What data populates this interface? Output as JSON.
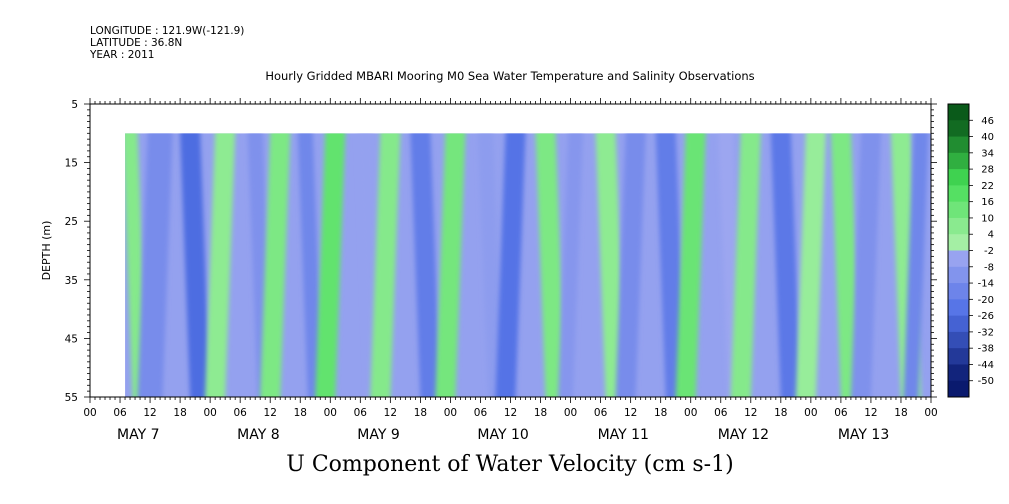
{
  "header": {
    "longitude": "LONGITUDE : 121.9W(-121.9)",
    "latitude": "LATITUDE : 36.8N",
    "year": "YEAR : 2011"
  },
  "chart_data": {
    "type": "heatmap",
    "title": "Hourly Gridded MBARI Mooring M0 Sea Water Temperature and Salinity Observations",
    "bottom_title": "U Component of Water Velocity (cm s-1)",
    "ylabel": "DEPTH (m)",
    "ylim": [
      55,
      5
    ],
    "y_ticks": [
      "5",
      "15",
      "25",
      "35",
      "45",
      "55"
    ],
    "x_hour_ticks": [
      "00",
      "06",
      "12",
      "18",
      "00",
      "06",
      "12",
      "18",
      "00",
      "06",
      "12",
      "18",
      "00",
      "06",
      "12",
      "18",
      "00",
      "06",
      "12",
      "18",
      "00",
      "06",
      "12",
      "18",
      "00",
      "06",
      "12",
      "18",
      "00"
    ],
    "x_day_labels": [
      "MAY  7",
      "MAY  8",
      "MAY  9",
      "MAY 10",
      "MAY 11",
      "MAY 12",
      "MAY 13"
    ],
    "data_start_hour": 7,
    "data_end_hour": 168,
    "data_top_depth": 10,
    "colorbar_levels": [
      "46",
      "40",
      "34",
      "28",
      "22",
      "16",
      "10",
      "4",
      "-2",
      "-8",
      "-14",
      "-20",
      "-26",
      "-32",
      "-38",
      "-44",
      "-50"
    ],
    "colors": {
      "positive_light": "#a8f0a8",
      "positive_mid": "#44dd55",
      "positive_dark": "#0a5a1a",
      "negative_light": "#aab0f2",
      "negative_mid": "#5070e6",
      "negative_dark": "#0a1a6e"
    },
    "bands": [
      {
        "center_hour": 8,
        "width": 3,
        "value": 8
      },
      {
        "center_hour": 14,
        "width": 5,
        "value": -14
      },
      {
        "center_hour": 20,
        "width": 4,
        "value": -26
      },
      {
        "center_hour": 27,
        "width": 4,
        "value": 6
      },
      {
        "center_hour": 33,
        "width": 3,
        "value": -12
      },
      {
        "center_hour": 38,
        "width": 4,
        "value": 10
      },
      {
        "center_hour": 43,
        "width": 3,
        "value": -16
      },
      {
        "center_hour": 49,
        "width": 4,
        "value": 16
      },
      {
        "center_hour": 55,
        "width": 3,
        "value": -6
      },
      {
        "center_hour": 60,
        "width": 4,
        "value": 8
      },
      {
        "center_hour": 66,
        "width": 4,
        "value": -20
      },
      {
        "center_hour": 73,
        "width": 4,
        "value": 12
      },
      {
        "center_hour": 79,
        "width": 3,
        "value": -8
      },
      {
        "center_hour": 85,
        "width": 4,
        "value": -24
      },
      {
        "center_hour": 91,
        "width": 4,
        "value": 10
      },
      {
        "center_hour": 97,
        "width": 3,
        "value": -10
      },
      {
        "center_hour": 103,
        "width": 4,
        "value": 6
      },
      {
        "center_hour": 109,
        "width": 4,
        "value": -14
      },
      {
        "center_hour": 115,
        "width": 4,
        "value": -20
      },
      {
        "center_hour": 121,
        "width": 4,
        "value": 14
      },
      {
        "center_hour": 127,
        "width": 3,
        "value": -4
      },
      {
        "center_hour": 132,
        "width": 4,
        "value": 8
      },
      {
        "center_hour": 138,
        "width": 4,
        "value": -22
      },
      {
        "center_hour": 145,
        "width": 4,
        "value": 4
      },
      {
        "center_hour": 150,
        "width": 4,
        "value": 10
      },
      {
        "center_hour": 156,
        "width": 4,
        "value": -12
      },
      {
        "center_hour": 162,
        "width": 4,
        "value": 6
      },
      {
        "center_hour": 166,
        "width": 3,
        "value": -16
      }
    ]
  }
}
